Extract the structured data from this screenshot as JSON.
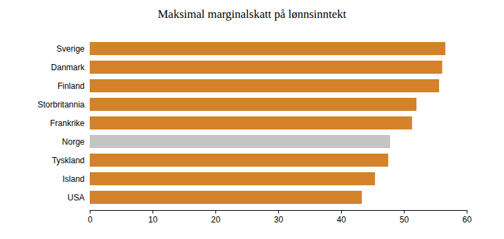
{
  "chart_data": {
    "type": "bar",
    "title": "Maksimal marginalskatt på lønnsinntekt",
    "orientation": "horizontal",
    "categories": [
      "Sverige",
      "Danmark",
      "Finland",
      "Storbritannia",
      "Frankrike",
      "Norge",
      "Tyskland",
      "Island",
      "USA"
    ],
    "values": [
      56.6,
      56.1,
      55.6,
      52.0,
      51.3,
      47.8,
      47.5,
      45.4,
      43.3
    ],
    "colors": [
      "#d4822a",
      "#d4822a",
      "#d4822a",
      "#d4822a",
      "#d4822a",
      "#c4c4c4",
      "#d4822a",
      "#d4822a",
      "#d4822a"
    ],
    "xlim": [
      0,
      60
    ],
    "xticks": [
      0,
      10,
      20,
      30,
      40,
      50,
      60
    ],
    "grid": false
  }
}
